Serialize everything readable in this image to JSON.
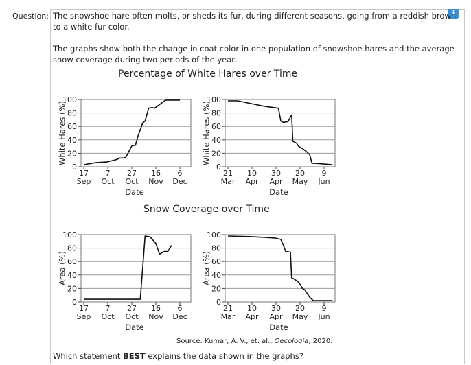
{
  "question": {
    "label": "Question:",
    "intro": "The snowshoe hare often molts, or sheds its fur, during different seasons, going from a reddish brown to a white fur color.",
    "graphs_desc": "The graphs show both the change in coat color in one population of snowshoe hares and the average snow coverage during two periods of the year.",
    "prompt_prefix": "Which statement ",
    "prompt_bold": "BEST",
    "prompt_suffix": " explains the data shown in the graphs?",
    "source_prefix": "Source: Kumar, A. V., et. al., ",
    "source_journal": "Oecologia",
    "source_suffix": ", 2020."
  },
  "icons": {
    "info": "info-icon"
  },
  "chart_data": [
    {
      "type": "line",
      "title": "Percentage of White Hares over Time",
      "ylabel": "White Hares (%)",
      "xlabel": "Date",
      "ylim": [
        0,
        100
      ],
      "yticks": [
        0,
        20,
        40,
        60,
        80,
        100
      ],
      "grid": true,
      "xticks": [
        [
          "17",
          "Sep"
        ],
        [
          "7",
          "Oct"
        ],
        [
          "27",
          "Oct"
        ],
        [
          "16",
          "Nov"
        ],
        [
          "6",
          "Dec"
        ]
      ],
      "x_index_range": [
        0,
        4
      ],
      "series": [
        {
          "x": [
            0,
            0.5,
            0.95,
            1.3,
            1.45,
            1.5,
            1.65,
            1.75,
            2.0,
            2.15,
            2.25,
            2.45,
            2.55,
            2.7,
            2.85,
            2.95,
            3.4,
            4.0
          ],
          "y": [
            3,
            6,
            7,
            10,
            12,
            13,
            13,
            14,
            31,
            32,
            45,
            65,
            68,
            87,
            88,
            87,
            99,
            99
          ]
        }
      ]
    },
    {
      "type": "line",
      "title": "",
      "ylabel": "White Hares (%)",
      "xlabel": "Date",
      "ylim": [
        0,
        100
      ],
      "yticks": [
        0,
        20,
        40,
        60,
        80,
        100
      ],
      "grid": true,
      "xticks": [
        [
          "21",
          "Mar"
        ],
        [
          "10",
          "Apr"
        ],
        [
          "30",
          "Apr"
        ],
        [
          "20",
          "May"
        ],
        [
          "9",
          "Jun"
        ]
      ],
      "x_index_range": [
        0,
        4
      ],
      "series": [
        {
          "x": [
            0,
            0.4,
            1.5,
            2.1,
            2.2,
            2.3,
            2.5,
            2.65,
            2.7,
            2.85,
            2.95,
            3.1,
            3.25,
            3.4,
            3.5,
            3.65,
            4.35
          ],
          "y": [
            98,
            98,
            90,
            87,
            68,
            66,
            67,
            77,
            38,
            35,
            30,
            27,
            23,
            18,
            5,
            5,
            3
          ]
        }
      ]
    },
    {
      "type": "line",
      "title": "Snow Coverage over Time",
      "ylabel": "Area (%)",
      "xlabel": "Date",
      "ylim": [
        0,
        100
      ],
      "yticks": [
        0,
        20,
        40,
        60,
        80,
        100
      ],
      "grid": true,
      "xticks": [
        [
          "17",
          "Sep"
        ],
        [
          "7",
          "Oct"
        ],
        [
          "27",
          "Oct"
        ],
        [
          "16",
          "Nov"
        ],
        [
          "6",
          "Dec"
        ]
      ],
      "x_index_range": [
        0,
        4
      ],
      "series": [
        {
          "x": [
            0,
            1.0,
            2.0,
            2.35,
            2.45,
            2.55,
            2.7,
            2.75,
            3.0,
            3.15,
            3.35,
            3.5,
            3.65
          ],
          "y": [
            4,
            4,
            4,
            4,
            50,
            98,
            97,
            97,
            87,
            71,
            75,
            75,
            84
          ]
        }
      ]
    },
    {
      "type": "line",
      "title": "",
      "ylabel": "Area (%)",
      "xlabel": "Date",
      "ylim": [
        0,
        100
      ],
      "yticks": [
        0,
        20,
        40,
        60,
        80,
        100
      ],
      "grid": true,
      "xticks": [
        [
          "21",
          "Mar"
        ],
        [
          "10",
          "Apr"
        ],
        [
          "30",
          "Apr"
        ],
        [
          "20",
          "May"
        ],
        [
          "9",
          "Jun"
        ]
      ],
      "x_index_range": [
        0,
        4
      ],
      "series": [
        {
          "x": [
            0,
            1.0,
            1.95,
            2.2,
            2.3,
            2.4,
            2.6,
            2.65,
            2.8,
            2.95,
            3.1,
            3.2,
            3.25,
            3.4,
            3.55,
            4.35
          ],
          "y": [
            98,
            97,
            95,
            93,
            85,
            75,
            74,
            36,
            33,
            29,
            20,
            18,
            15,
            7,
            2,
            2
          ]
        }
      ]
    }
  ]
}
